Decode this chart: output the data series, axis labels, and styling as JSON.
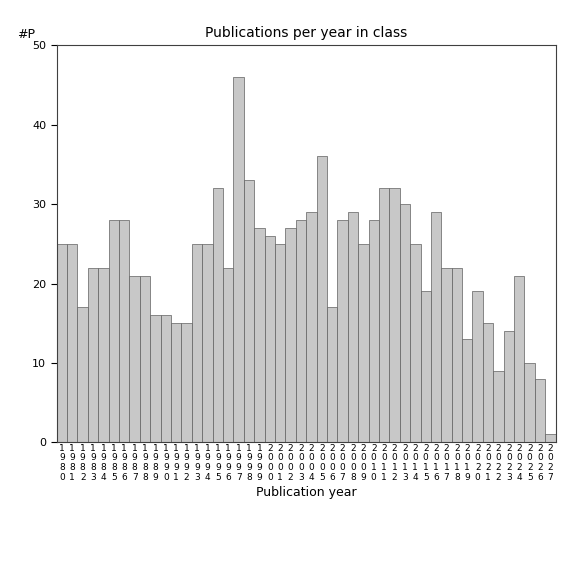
{
  "title": "Publications per year in class",
  "xlabel": "Publication year",
  "ylabel": "#P",
  "bar_color": "#c8c8c8",
  "bar_edge_color": "#606060",
  "background_color": "#ffffff",
  "ylim": [
    0,
    50
  ],
  "yticks": [
    0,
    10,
    20,
    30,
    40,
    50
  ],
  "years": [
    1980,
    1981,
    1982,
    1983,
    1984,
    1985,
    1986,
    1987,
    1988,
    1989,
    1990,
    1991,
    1992,
    1993,
    1994,
    1995,
    1996,
    1997,
    1998,
    1999,
    2000,
    2001,
    2002,
    2003,
    2004,
    2005,
    2006,
    2007,
    2008,
    2009,
    2010,
    2011,
    2012,
    2013,
    2014,
    2015,
    2016,
    2017,
    2018,
    2019,
    2020,
    2021,
    2022,
    2023,
    2024,
    2025,
    2026,
    2027
  ],
  "values": [
    25,
    25,
    17,
    22,
    22,
    28,
    28,
    21,
    21,
    16,
    16,
    15,
    15,
    25,
    25,
    32,
    22,
    46,
    33,
    27,
    26,
    25,
    27,
    28,
    29,
    36,
    17,
    28,
    29,
    25,
    28,
    32,
    32,
    30,
    25,
    19,
    29,
    22,
    22,
    13,
    19,
    15,
    9,
    14,
    21,
    10,
    8,
    1
  ]
}
